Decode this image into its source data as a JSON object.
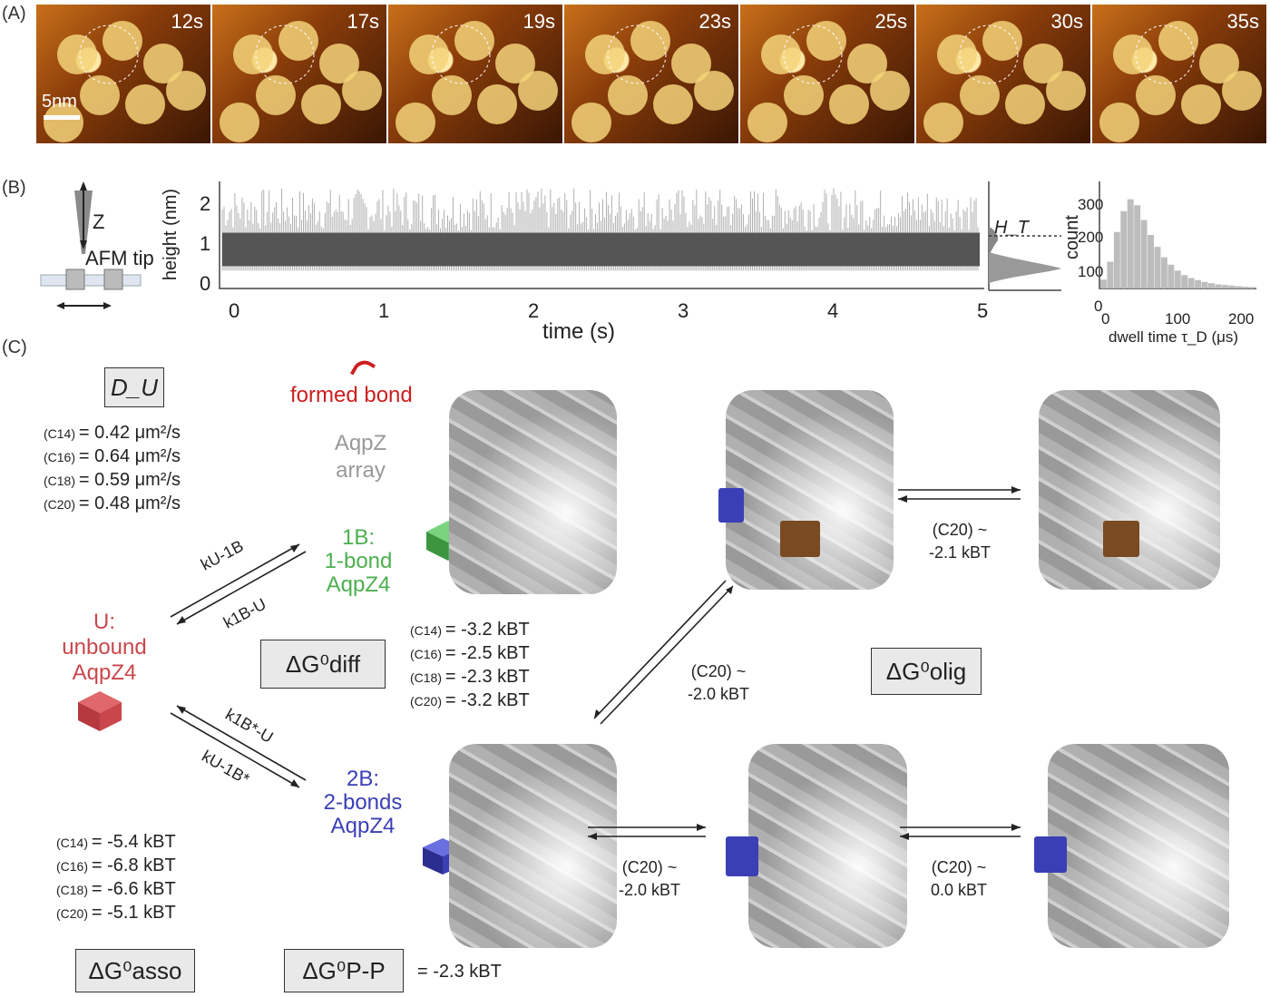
{
  "panel_labels": {
    "a": "(A)",
    "b": "(B)",
    "c": "(C)"
  },
  "afm_frames": [
    "12s",
    "17s",
    "19s",
    "23s",
    "25s",
    "30s",
    "35s"
  ],
  "scale_bar": "5nm",
  "panel_b": {
    "z_label": "Z",
    "tip_label": "AFM tip",
    "trace_ylabel": "height (nm)",
    "trace_yticks": [
      "2",
      "1",
      "0"
    ],
    "trace_xlabel": "time (s)",
    "trace_xticks": [
      "0",
      "1",
      "2",
      "3",
      "4",
      "5"
    ],
    "ht_label": "H_T",
    "hist_ylabel": "count",
    "hist_yticks": [
      "300",
      "200",
      "100",
      "0"
    ],
    "hist_xlabel": "dwell time τ_D (μs)",
    "hist_xticks": [
      "0",
      "100",
      "200"
    ]
  },
  "chart_data": [
    {
      "type": "line",
      "xlabel": "time (s)",
      "ylabel": "height (nm)",
      "xlim": [
        0,
        5
      ],
      "ylim": [
        0,
        2.4
      ],
      "description_series": [
        {
          "name": "upper level",
          "values": [
            1.25
          ]
        },
        {
          "name": "lower level",
          "values": [
            0.5
          ]
        }
      ]
    },
    {
      "type": "bar",
      "xlabel": "dwell time τ_D (μs)",
      "ylabel": "count",
      "xlim": [
        0,
        230
      ],
      "ylim": [
        0,
        360
      ],
      "x": [
        5,
        15,
        25,
        35,
        45,
        55,
        65,
        75,
        85,
        95,
        105,
        115,
        125,
        135,
        145,
        155,
        165,
        175,
        185,
        195,
        205,
        215,
        225
      ],
      "values": [
        30,
        90,
        190,
        260,
        300,
        280,
        230,
        180,
        140,
        105,
        80,
        60,
        45,
        35,
        28,
        22,
        18,
        14,
        12,
        10,
        8,
        6,
        5
      ]
    }
  ],
  "panel_c": {
    "du_label": "D_U",
    "du_values": [
      {
        "sub": "(C14)",
        "text": "= 0.42 μm²/s"
      },
      {
        "sub": "(C16)",
        "text": "= 0.64 μm²/s"
      },
      {
        "sub": "(C18)",
        "text": "= 0.59 μm²/s"
      },
      {
        "sub": "(C20)",
        "text": "= 0.48 μm²/s"
      }
    ],
    "formed_bond": "formed bond",
    "array_label": [
      "AqpZ",
      "array"
    ],
    "state_1b": [
      "1B:",
      "1-bond",
      "AqpZ4"
    ],
    "state_u": [
      "U:",
      "unbound",
      "AqpZ4"
    ],
    "state_2b": [
      "2B:",
      "2-bonds",
      "AqpZ4"
    ],
    "k_u_1b": "kU-1B",
    "k_1b_u": "k1B-U",
    "k_1bs_u": "k1B*-U",
    "k_u_1bs": "kU-1B*",
    "dg_diff": "ΔG⁰diff",
    "dg_olig": "ΔG⁰olig",
    "dg_asso": "ΔG⁰asso",
    "dg_pp": "ΔG⁰P-P",
    "dg_pp_value": "= -2.3 kBT",
    "diff_values": [
      {
        "sub": "(C14)",
        "text": "= -3.2 kBT"
      },
      {
        "sub": "(C16)",
        "text": "= -2.5 kBT"
      },
      {
        "sub": "(C18)",
        "text": "= -2.3 kBT"
      },
      {
        "sub": "(C20)",
        "text": "= -3.2 kBT"
      }
    ],
    "asso_values": [
      {
        "sub": "(C14)",
        "text": "= -5.4 kBT"
      },
      {
        "sub": "(C16)",
        "text": "= -6.8 kBT"
      },
      {
        "sub": "(C18)",
        "text": "= -6.6 kBT"
      },
      {
        "sub": "(C20)",
        "text": "= -5.1 kBT"
      }
    ],
    "eq_top": [
      "(C20) ~",
      "-2.1 kBT"
    ],
    "eq_diag": [
      "(C20) ~",
      "-2.0 kBT"
    ],
    "eq_bottom1": [
      "(C20) ~",
      "-2.0 kBT"
    ],
    "eq_bottom2": [
      "(C20) ~",
      "0.0 kBT"
    ]
  },
  "colors": {
    "unbound": "#c9474c",
    "one_bond": "#4caf50",
    "two_bond": "#3b3fb5",
    "formed_bond": "#cc1f1f",
    "array": "#9a9a9a"
  }
}
